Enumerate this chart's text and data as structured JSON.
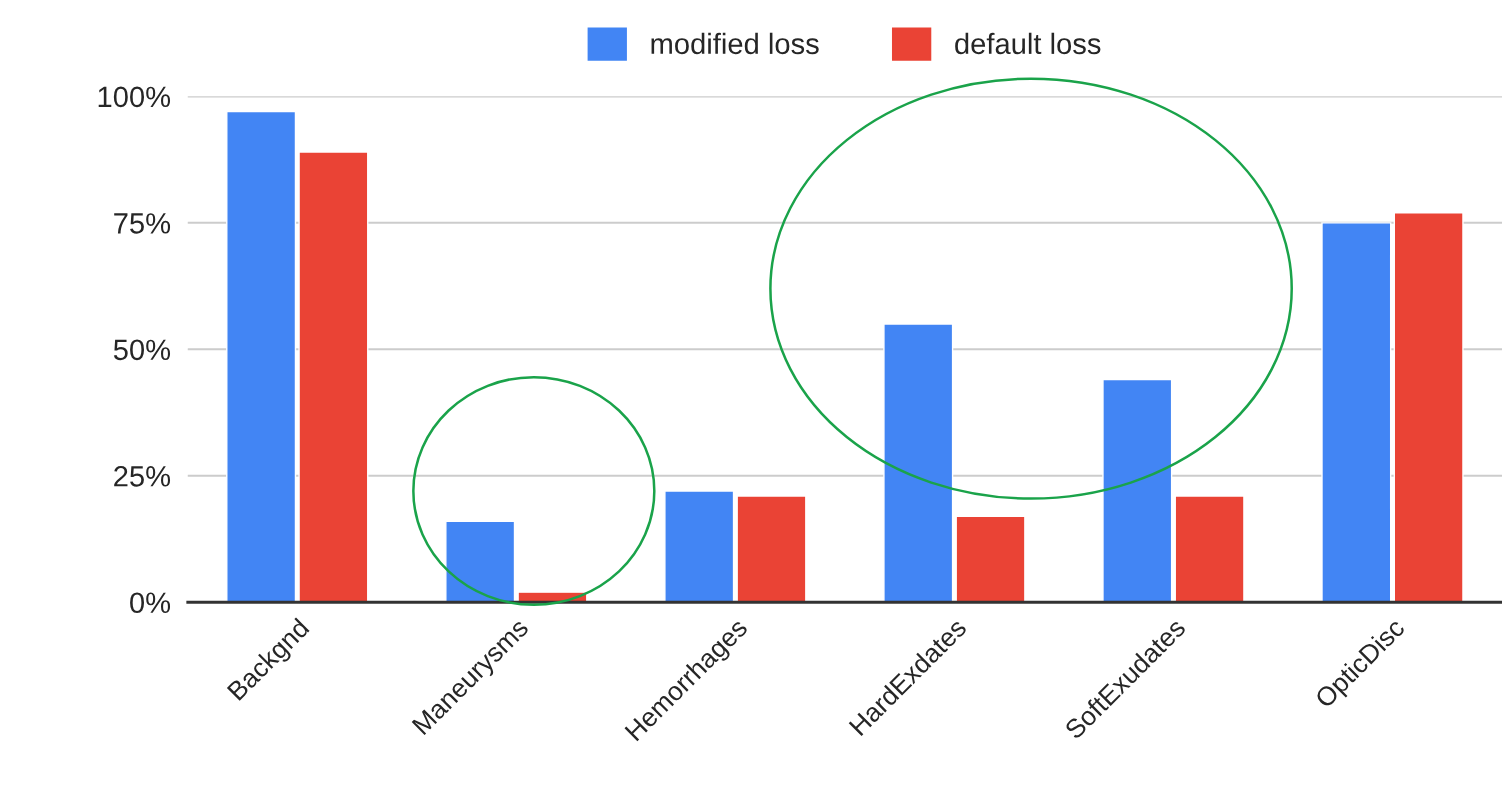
{
  "chart_data": {
    "type": "bar",
    "categories": [
      "Backgnd",
      "Maneurysms",
      "Hemorrhages",
      "HardExdates",
      "SoftExudates",
      "OpticDisc"
    ],
    "series": [
      {
        "name": "modified loss",
        "color": "#4285f4",
        "values": [
          97,
          16,
          22,
          55,
          44,
          75
        ]
      },
      {
        "name": "default loss",
        "color": "#ea4335",
        "values": [
          89,
          2,
          21,
          17,
          21,
          77
        ]
      }
    ],
    "ylim": [
      0,
      100
    ],
    "yticks": [
      {
        "value": 0,
        "label": "0%"
      },
      {
        "value": 25,
        "label": "25%"
      },
      {
        "value": 50,
        "label": "50%"
      },
      {
        "value": 75,
        "label": "75%"
      },
      {
        "value": 100,
        "label": "100%"
      }
    ],
    "grid": "y",
    "legend": "top"
  }
}
